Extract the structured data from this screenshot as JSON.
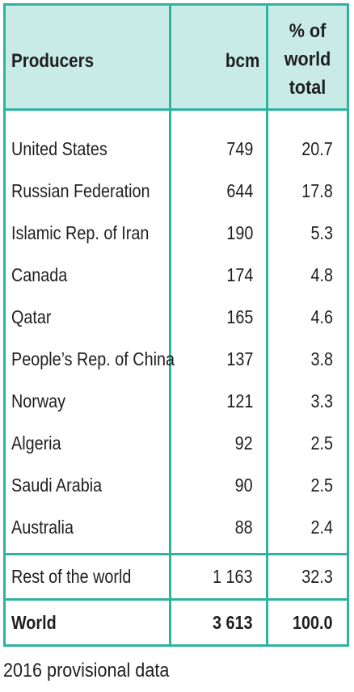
{
  "table": {
    "headers": {
      "producers": "Producers",
      "bcm": "bcm",
      "percent_line1": "% of",
      "percent_line2": "world",
      "percent_line3": "total"
    },
    "rows": [
      {
        "producer": "United States",
        "bcm": "749",
        "percent": "20.7"
      },
      {
        "producer": "Russian Federation",
        "bcm": "644",
        "percent": "17.8"
      },
      {
        "producer": "Islamic Rep. of Iran",
        "bcm": "190",
        "percent": "5.3"
      },
      {
        "producer": "Canada",
        "bcm": "174",
        "percent": "4.8"
      },
      {
        "producer": "Qatar",
        "bcm": "165",
        "percent": "4.6"
      },
      {
        "producer": "People’s Rep. of China",
        "bcm": "137",
        "percent": "3.8"
      },
      {
        "producer": "Norway",
        "bcm": "121",
        "percent": "3.3"
      },
      {
        "producer": "Algeria",
        "bcm": "92",
        "percent": "2.5"
      },
      {
        "producer": "Saudi Arabia",
        "bcm": "90",
        "percent": "2.5"
      },
      {
        "producer": "Australia",
        "bcm": "88",
        "percent": "2.4"
      }
    ],
    "rest_of_world": {
      "producer": "Rest of the world",
      "bcm": "1 163",
      "percent": "32.3"
    },
    "world": {
      "producer": "World",
      "bcm": "3 613",
      "percent": "100.0"
    }
  },
  "footnote": "2016 provisional data",
  "colors": {
    "border": "#2eb3a0",
    "header_background": "#c9ebe6",
    "text": "#1f1f1f"
  }
}
